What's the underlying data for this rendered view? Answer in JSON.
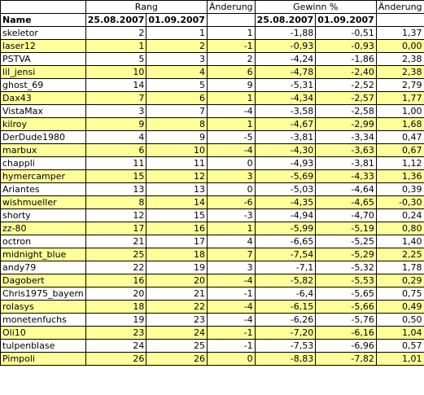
{
  "header": {
    "rang": "Rang",
    "aenderung1": "Änderung",
    "gewinn": "Gewinn %",
    "aenderung2": "Änderung",
    "name": "Name",
    "date1": "25.08.2007",
    "date2": "01.09.2007",
    "date3": "25.08.2007",
    "date4": "01.09.2007"
  },
  "rows": [
    {
      "name": "skeletor",
      "r1": "2",
      "r2": "1",
      "ch": "1",
      "g1": "-1,88",
      "g2": "-0,51",
      "gc": "1,37"
    },
    {
      "name": "laser12",
      "r1": "1",
      "r2": "2",
      "ch": "-1",
      "g1": "-0,93",
      "g2": "-0,93",
      "gc": "0,00"
    },
    {
      "name": "PSTVA",
      "r1": "5",
      "r2": "3",
      "ch": "2",
      "g1": "-4,24",
      "g2": "-1,86",
      "gc": "2,38"
    },
    {
      "name": "lil_jensi",
      "r1": "10",
      "r2": "4",
      "ch": "6",
      "g1": "-4,78",
      "g2": "-2,40",
      "gc": "2,38"
    },
    {
      "name": "ghost_69",
      "r1": "14",
      "r2": "5",
      "ch": "9",
      "g1": "-5,31",
      "g2": "-2,52",
      "gc": "2,79"
    },
    {
      "name": "Dax43",
      "r1": "7",
      "r2": "6",
      "ch": "1",
      "g1": "-4,34",
      "g2": "-2,57",
      "gc": "1,77"
    },
    {
      "name": "VistaMax",
      "r1": "3",
      "r2": "7",
      "ch": "-4",
      "g1": "-3,58",
      "g2": "-2,58",
      "gc": "1,00"
    },
    {
      "name": "kilroy",
      "r1": "9",
      "r2": "8",
      "ch": "1",
      "g1": "-4,67",
      "g2": "-2,99",
      "gc": "1,68"
    },
    {
      "name": "DerDude1980",
      "r1": "4",
      "r2": "9",
      "ch": "-5",
      "g1": "-3,81",
      "g2": "-3,34",
      "gc": "0,47"
    },
    {
      "name": "marbux",
      "r1": "6",
      "r2": "10",
      "ch": "-4",
      "g1": "-4,30",
      "g2": "-3,63",
      "gc": "0,67"
    },
    {
      "name": "chappli",
      "r1": "11",
      "r2": "11",
      "ch": "0",
      "g1": "-4,93",
      "g2": "-3,81",
      "gc": "1,12"
    },
    {
      "name": "hymercamper",
      "r1": "15",
      "r2": "12",
      "ch": "3",
      "g1": "-5,69",
      "g2": "-4,33",
      "gc": "1,36"
    },
    {
      "name": "Ariantes",
      "r1": "13",
      "r2": "13",
      "ch": "0",
      "g1": "-5,03",
      "g2": "-4,64",
      "gc": "0,39"
    },
    {
      "name": "wishmueller",
      "r1": "8",
      "r2": "14",
      "ch": "-6",
      "g1": "-4,35",
      "g2": "-4,65",
      "gc": "-0,30"
    },
    {
      "name": "shorty",
      "r1": "12",
      "r2": "15",
      "ch": "-3",
      "g1": "-4,94",
      "g2": "-4,70",
      "gc": "0,24"
    },
    {
      "name": "zz-80",
      "r1": "17",
      "r2": "16",
      "ch": "1",
      "g1": "-5,99",
      "g2": "-5,19",
      "gc": "0,80"
    },
    {
      "name": "octron",
      "r1": "21",
      "r2": "17",
      "ch": "4",
      "g1": "-6,65",
      "g2": "-5,25",
      "gc": "1,40"
    },
    {
      "name": "midnight_blue",
      "r1": "25",
      "r2": "18",
      "ch": "7",
      "g1": "-7,54",
      "g2": "-5,29",
      "gc": "2,25"
    },
    {
      "name": "andy79",
      "r1": "22",
      "r2": "19",
      "ch": "3",
      "g1": "-7,1",
      "g2": "-5,32",
      "gc": "1,78"
    },
    {
      "name": "Dagobert",
      "r1": "16",
      "r2": "20",
      "ch": "-4",
      "g1": "-5,82",
      "g2": "-5,53",
      "gc": "0,29"
    },
    {
      "name": "Chris1975_bayern",
      "r1": "20",
      "r2": "21",
      "ch": "-1",
      "g1": "-6,4",
      "g2": "-5,65",
      "gc": "0,75"
    },
    {
      "name": "rolasys",
      "r1": "18",
      "r2": "22",
      "ch": "-4",
      "g1": "-6,15",
      "g2": "-5,66",
      "gc": "0,49"
    },
    {
      "name": "monetenfuchs",
      "r1": "19",
      "r2": "23",
      "ch": "-4",
      "g1": "-6,26",
      "g2": "-5,76",
      "gc": "0,50"
    },
    {
      "name": "Oli10",
      "r1": "23",
      "r2": "24",
      "ch": "-1",
      "g1": "-7,20",
      "g2": "-6,16",
      "gc": "1,04"
    },
    {
      "name": "tulpenblase",
      "r1": "24",
      "r2": "25",
      "ch": "-1",
      "g1": "-7,53",
      "g2": "-6,96",
      "gc": "0,57"
    },
    {
      "name": "Pimpoli",
      "r1": "26",
      "r2": "26",
      "ch": "0",
      "g1": "-8,83",
      "g2": "-7,82",
      "gc": "1,01"
    }
  ],
  "colors": {
    "highlight": "#ffff99",
    "plain": "#ffffff",
    "border": "#000000"
  }
}
